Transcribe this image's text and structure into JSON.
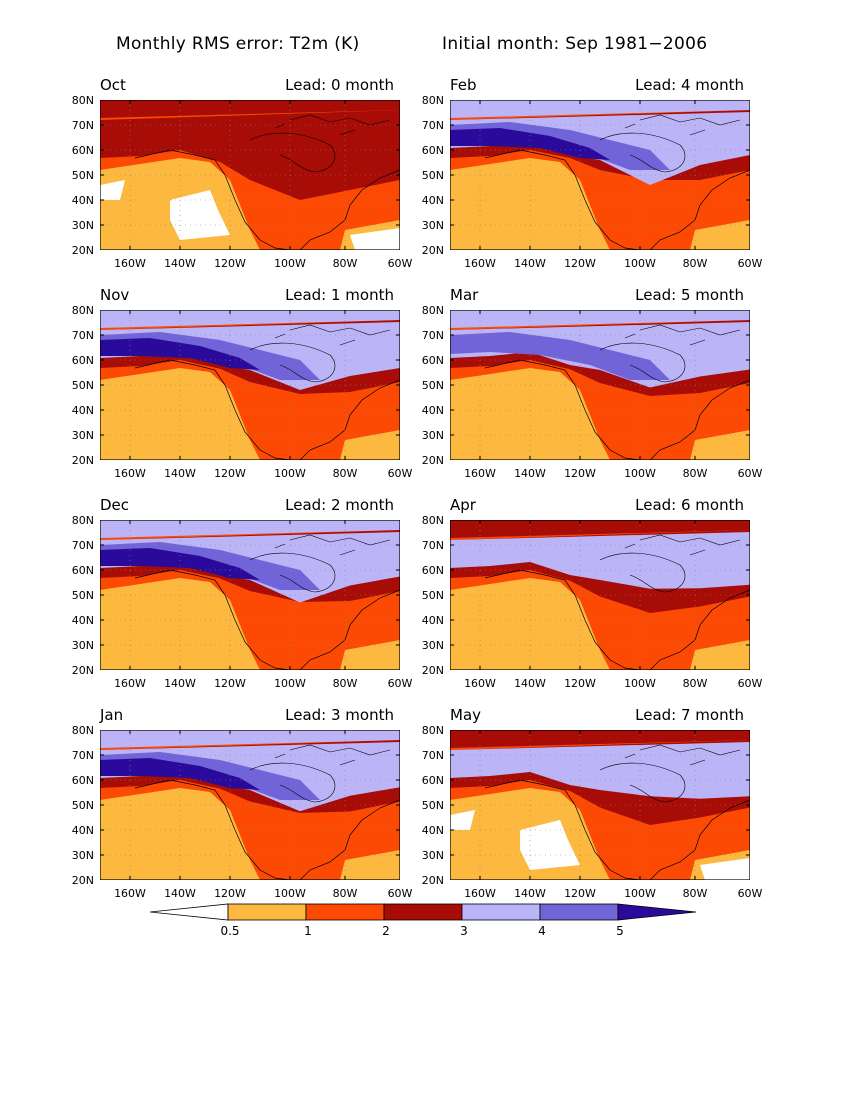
{
  "header": {
    "left": "Monthly RMS error: T2m (K)",
    "right": "Initial month: Sep 1981−2006"
  },
  "axes": {
    "lat_labels": [
      "80N",
      "70N",
      "60N",
      "50N",
      "40N",
      "30N",
      "20N"
    ],
    "lon_labels": [
      "160W",
      "140W",
      "120W",
      "100W",
      "80W",
      "60W"
    ]
  },
  "panels": [
    {
      "month": "Oct",
      "lead": "Lead: 0 month"
    },
    {
      "month": "Feb",
      "lead": "Lead: 4 month"
    },
    {
      "month": "Nov",
      "lead": "Lead: 1 month"
    },
    {
      "month": "Mar",
      "lead": "Lead: 5 month"
    },
    {
      "month": "Dec",
      "lead": "Lead: 2 month"
    },
    {
      "month": "Apr",
      "lead": "Lead: 6 month"
    },
    {
      "month": "Jan",
      "lead": "Lead: 3 month"
    },
    {
      "month": "May",
      "lead": "Lead: 7 month"
    }
  ],
  "colorbar": {
    "labels": [
      "0.5",
      "1",
      "2",
      "3",
      "4",
      "5"
    ],
    "colors": [
      "#ffffff",
      "#fdb83f",
      "#fc4a04",
      "#a80c06",
      "#bbb4f7",
      "#7064d8",
      "#2a0a9a"
    ]
  }
}
